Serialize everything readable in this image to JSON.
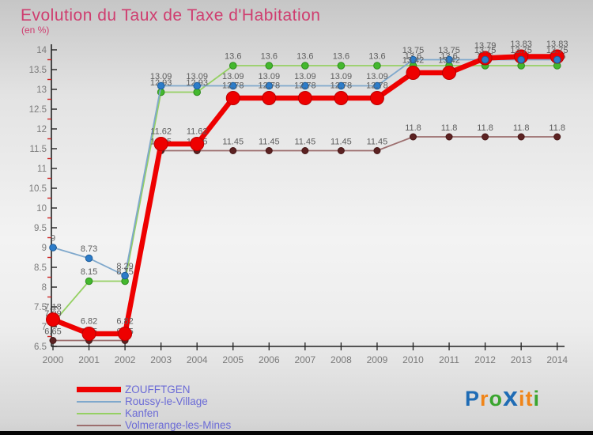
{
  "chart_data": {
    "type": "line",
    "title": "Evolution du Taux de Taxe d'Habitation",
    "subtitle": "(en %)",
    "x": [
      2000,
      2001,
      2002,
      2003,
      2004,
      2005,
      2006,
      2007,
      2008,
      2009,
      2010,
      2011,
      2012,
      2013,
      2014
    ],
    "ylim": [
      6.5,
      14
    ],
    "ytick_step": 0.5,
    "grid": false,
    "legend_position": "bottom-left",
    "axis_color": "#222222",
    "tick_label_color": "#7a7a7a",
    "minor_tick_color": "#cc2222",
    "data_label_color": "#5d5d5d",
    "series": [
      {
        "name": "ZOUFFTGEN",
        "line_color": "#ee0000",
        "dot_color": "#ee0000",
        "dot_stroke": "#bb0000",
        "line_width": 6.5,
        "dot_radius": 8.5,
        "swatch_height": 7,
        "values": [
          7.18,
          6.82,
          6.82,
          11.62,
          11.62,
          12.78,
          12.78,
          12.78,
          12.78,
          12.78,
          13.42,
          13.42,
          13.79,
          13.83,
          13.83
        ]
      },
      {
        "name": "Roussy-le-Village",
        "line_color": "#7fa8cc",
        "dot_color": "#2c7cc9",
        "dot_stroke": "#1d5c99",
        "line_width": 1.8,
        "dot_radius": 4.3,
        "swatch_height": 2,
        "values": [
          9,
          8.73,
          8.29,
          13.09,
          13.09,
          13.09,
          13.09,
          13.09,
          13.09,
          13.09,
          13.75,
          13.75,
          13.75,
          13.75,
          13.75
        ]
      },
      {
        "name": "Kanfen",
        "line_color": "#95d063",
        "dot_color": "#44b82e",
        "dot_stroke": "#2f8c1e",
        "line_width": 1.8,
        "dot_radius": 4.3,
        "swatch_height": 2,
        "values": [
          7.09,
          8.15,
          8.15,
          12.93,
          12.93,
          13.6,
          13.6,
          13.6,
          13.6,
          13.6,
          13.6,
          13.6,
          13.6,
          13.6,
          13.6
        ]
      },
      {
        "name": "Volmerange-les-Mines",
        "line_color": "#9c6e6e",
        "dot_color": "#5c2222",
        "dot_stroke": "#471717",
        "line_width": 1.8,
        "dot_radius": 4,
        "swatch_height": 2,
        "values": [
          6.65,
          6.65,
          6.65,
          11.45,
          11.45,
          11.45,
          11.45,
          11.45,
          11.45,
          11.45,
          11.8,
          11.8,
          11.8,
          11.8,
          11.8
        ]
      }
    ]
  },
  "logo": {
    "text": "Proxiti",
    "letters": [
      {
        "ch": "P",
        "color": "#1f6cb5",
        "size": 27
      },
      {
        "ch": "r",
        "color": "#f08519",
        "size": 27
      },
      {
        "ch": "o",
        "color": "#3aa52f",
        "size": 27
      },
      {
        "ch": "x",
        "color": "#1f6cb5",
        "size": 34
      },
      {
        "ch": "i",
        "color": "#f08519",
        "size": 27
      },
      {
        "ch": "t",
        "color": "#f08519",
        "size": 27
      },
      {
        "ch": "i",
        "color": "#3aa52f",
        "size": 27
      }
    ]
  }
}
